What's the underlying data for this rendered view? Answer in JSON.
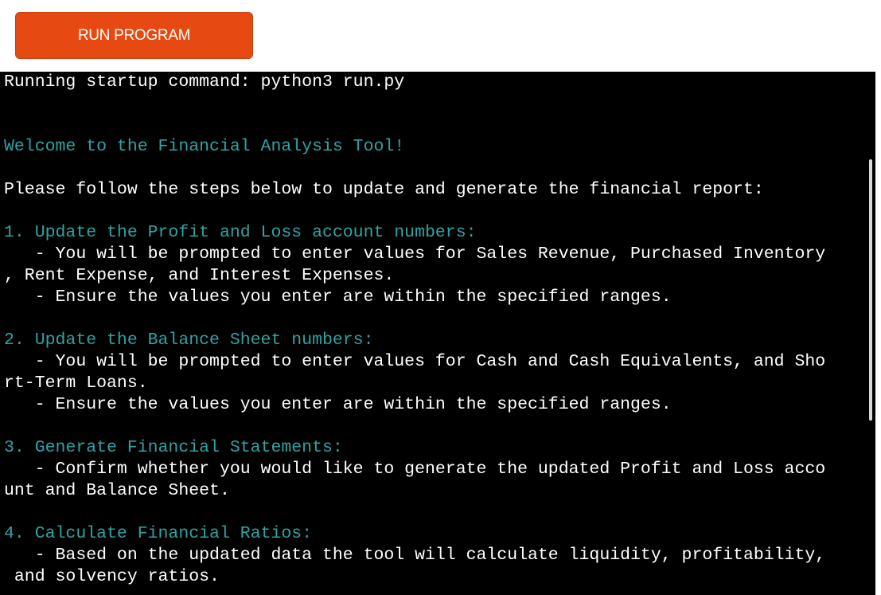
{
  "run_button": {
    "label": "RUN PROGRAM"
  },
  "terminal": {
    "lines": [
      {
        "text": "Running startup command: python3 run.py",
        "style": "white"
      },
      {
        "text": "",
        "style": "white"
      },
      {
        "text": "",
        "style": "white"
      },
      {
        "text": "Welcome to the Financial Analysis Tool!",
        "style": "cyan"
      },
      {
        "text": "",
        "style": "white"
      },
      {
        "text": "Please follow the steps below to update and generate the financial report:",
        "style": "white"
      },
      {
        "text": "",
        "style": "white"
      },
      {
        "text": "1. Update the Profit and Loss account numbers:",
        "style": "cyan"
      },
      {
        "text": "   - You will be prompted to enter values for Sales Revenue, Purchased Inventory",
        "style": "white"
      },
      {
        "text": ", Rent Expense, and Interest Expenses.",
        "style": "white"
      },
      {
        "text": "   - Ensure the values you enter are within the specified ranges.",
        "style": "white"
      },
      {
        "text": "",
        "style": "white"
      },
      {
        "text": "2. Update the Balance Sheet numbers:",
        "style": "cyan"
      },
      {
        "text": "   - You will be prompted to enter values for Cash and Cash Equivalents, and Sho",
        "style": "white"
      },
      {
        "text": "rt-Term Loans.",
        "style": "white"
      },
      {
        "text": "   - Ensure the values you enter are within the specified ranges.",
        "style": "white"
      },
      {
        "text": "",
        "style": "white"
      },
      {
        "text": "3. Generate Financial Statements:",
        "style": "cyan"
      },
      {
        "text": "   - Confirm whether you would like to generate the updated Profit and Loss acco",
        "style": "white"
      },
      {
        "text": "unt and Balance Sheet.",
        "style": "white"
      },
      {
        "text": "",
        "style": "white"
      },
      {
        "text": "4. Calculate Financial Ratios:",
        "style": "cyan"
      },
      {
        "text": "   - Based on the updated data the tool will calculate liquidity, profitability,",
        "style": "white"
      },
      {
        "text": " and solvency ratios.",
        "style": "white"
      }
    ]
  },
  "colors": {
    "button_bg": "#e64a12",
    "terminal_bg": "#000000",
    "terminal_text": "#ffffff",
    "terminal_accent": "#2ea3a3"
  }
}
